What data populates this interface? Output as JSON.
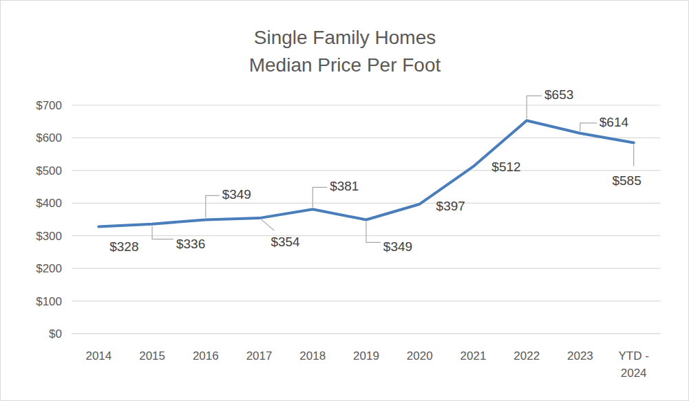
{
  "chart_data": {
    "type": "line",
    "title": "Single Family Homes\nMedian Price Per Foot",
    "categories": [
      "2014",
      "2015",
      "2016",
      "2017",
      "2018",
      "2019",
      "2020",
      "2021",
      "2022",
      "2023",
      "YTD - 2024"
    ],
    "values": [
      328,
      336,
      349,
      354,
      381,
      349,
      397,
      512,
      653,
      614,
      585
    ],
    "value_labels": [
      "$328",
      "$336",
      "$349",
      "$354",
      "$381",
      "$349",
      "$397",
      "$512",
      "$653",
      "$614",
      "$585"
    ],
    "color": "#4a7ebb",
    "ylim": [
      0,
      700
    ],
    "yticks": [
      {
        "value": 0,
        "label": "$0"
      },
      {
        "value": 100,
        "label": "$100"
      },
      {
        "value": 200,
        "label": "$200"
      },
      {
        "value": 300,
        "label": "$300"
      },
      {
        "value": 400,
        "label": "$400"
      },
      {
        "value": 500,
        "label": "$500"
      },
      {
        "value": 600,
        "label": "$600"
      },
      {
        "value": 700,
        "label": "$700"
      }
    ],
    "grid": true,
    "data_labels": true
  }
}
